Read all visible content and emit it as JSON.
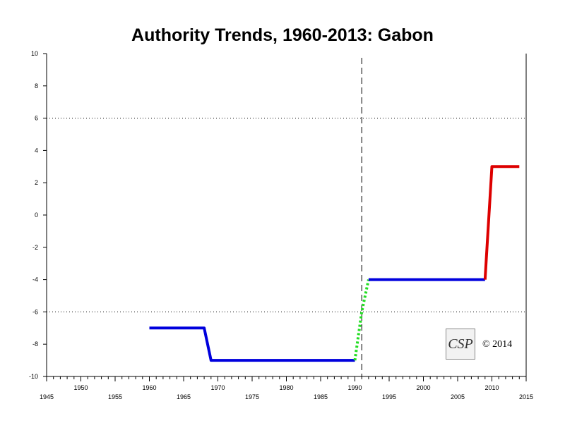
{
  "chart_data": {
    "type": "line",
    "title": "Authority Trends, 1960-2013: Gabon",
    "xlabel": "",
    "ylabel": "",
    "xlim": [
      1945,
      2015
    ],
    "ylim": [
      -10,
      10
    ],
    "y_ticks": [
      10,
      8,
      6,
      4,
      2,
      0,
      -2,
      -4,
      -6,
      -8,
      -10
    ],
    "x_ticks_low": [
      1945,
      1955,
      1965,
      1975,
      1985,
      1995,
      2005,
      2015
    ],
    "x_ticks_high": [
      1950,
      1960,
      1970,
      1980,
      1990,
      2000,
      2010
    ],
    "reference_lines": [
      6,
      -6
    ],
    "vertical_marker": 1991,
    "segments": [
      {
        "color": "#0000dd",
        "style": "solid",
        "points": [
          [
            1960,
            -7
          ],
          [
            1968,
            -7
          ],
          [
            1969,
            -9
          ],
          [
            1990,
            -9
          ]
        ]
      },
      {
        "color": "#22dd22",
        "style": "dotted",
        "points": [
          [
            1990,
            -9
          ],
          [
            1991,
            -6
          ],
          [
            1992,
            -4
          ]
        ]
      },
      {
        "color": "#0000dd",
        "style": "solid",
        "points": [
          [
            1992,
            -4
          ],
          [
            2009,
            -4
          ]
        ]
      },
      {
        "color": "#dd0000",
        "style": "solid",
        "points": [
          [
            2009,
            -4
          ],
          [
            2010,
            3
          ],
          [
            2014,
            3
          ]
        ]
      }
    ],
    "logo_text": "CSP",
    "copyright": "© 2014"
  }
}
